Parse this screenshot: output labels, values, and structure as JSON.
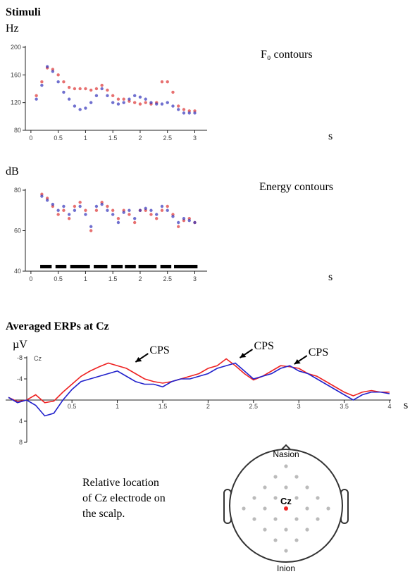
{
  "chart_data": [
    {
      "type": "scatter",
      "title": "Stimuli",
      "ylabel": "Hz",
      "xlabel": "s",
      "annotation": "F₀ contours",
      "x": [
        0.1,
        0.2,
        0.3,
        0.4,
        0.5,
        0.6,
        0.7,
        0.8,
        0.9,
        1.0,
        1.1,
        1.2,
        1.3,
        1.4,
        1.5,
        1.6,
        1.7,
        1.8,
        1.9,
        2.0,
        2.1,
        2.2,
        2.3,
        2.4,
        2.5,
        2.6,
        2.7,
        2.8,
        2.9,
        3.0
      ],
      "series": [
        {
          "color": "#d33",
          "values": [
            130,
            150,
            170,
            168,
            160,
            150,
            142,
            140,
            140,
            140,
            138,
            140,
            145,
            138,
            130,
            125,
            125,
            122,
            120,
            118,
            120,
            118,
            120,
            150,
            150,
            135,
            115,
            110,
            108,
            108
          ]
        },
        {
          "color": "#33b",
          "values": [
            125,
            145,
            172,
            165,
            150,
            135,
            125,
            115,
            110,
            112,
            120,
            130,
            140,
            130,
            120,
            118,
            120,
            125,
            130,
            128,
            125,
            120,
            118,
            118,
            120,
            115,
            110,
            105,
            105,
            105
          ]
        }
      ],
      "xlim": [
        -0.05,
        3.2
      ],
      "xticks": [
        0,
        0.5,
        1,
        1.5,
        2,
        2.5,
        3
      ],
      "ylim": [
        80,
        200
      ],
      "yticks": [
        80,
        120,
        160,
        200
      ]
    },
    {
      "type": "scatter",
      "ylabel": "dB",
      "xlabel": "s",
      "annotation": "Energy contours",
      "x": [
        0.2,
        0.3,
        0.4,
        0.5,
        0.6,
        0.7,
        0.8,
        0.9,
        1.0,
        1.1,
        1.2,
        1.3,
        1.4,
        1.5,
        1.6,
        1.7,
        1.8,
        1.9,
        2.0,
        2.1,
        2.2,
        2.3,
        2.4,
        2.5,
        2.6,
        2.7,
        2.8,
        2.9,
        3.0
      ],
      "series": [
        {
          "color": "#d33",
          "values": [
            78,
            76,
            72,
            68,
            70,
            66,
            72,
            74,
            70,
            60,
            70,
            74,
            72,
            70,
            66,
            70,
            68,
            64,
            70,
            70,
            68,
            66,
            70,
            72,
            68,
            62,
            65,
            66,
            64
          ]
        },
        {
          "color": "#33b",
          "values": [
            77,
            75,
            73,
            70,
            72,
            68,
            70,
            72,
            68,
            62,
            72,
            73,
            70,
            68,
            64,
            69,
            70,
            66,
            70,
            71,
            70,
            68,
            72,
            70,
            67,
            64,
            66,
            65,
            64
          ]
        }
      ],
      "segments": [
        [
          0.17,
          0.38
        ],
        [
          0.45,
          0.65
        ],
        [
          0.72,
          1.08
        ],
        [
          1.15,
          1.4
        ],
        [
          1.47,
          1.68
        ],
        [
          1.72,
          1.92
        ],
        [
          1.97,
          2.3
        ],
        [
          2.37,
          2.57
        ],
        [
          2.62,
          3.05
        ]
      ],
      "xlim": [
        -0.05,
        3.2
      ],
      "xticks": [
        0,
        0.5,
        1,
        1.5,
        2,
        2.5,
        3
      ],
      "ylim": [
        40,
        80
      ],
      "yticks": [
        40,
        60,
        80
      ]
    },
    {
      "type": "line",
      "title": "Averaged ERPs at Cz",
      "ylabel": "µV",
      "xlabel": "s",
      "channel_label": "Cz",
      "x": [
        -0.2,
        -0.1,
        0,
        0.1,
        0.2,
        0.3,
        0.4,
        0.5,
        0.6,
        0.7,
        0.8,
        0.9,
        1.0,
        1.1,
        1.2,
        1.3,
        1.4,
        1.5,
        1.6,
        1.7,
        1.8,
        1.9,
        2.0,
        2.1,
        2.2,
        2.3,
        2.4,
        2.5,
        2.6,
        2.7,
        2.8,
        2.9,
        3.0,
        3.1,
        3.2,
        3.3,
        3.4,
        3.5,
        3.6,
        3.7,
        3.8,
        3.9,
        4.0
      ],
      "series": [
        {
          "color": "#e22",
          "values": [
            -0.5,
            0.3,
            0,
            -1,
            0.5,
            0.2,
            -1.5,
            -3,
            -4.5,
            -5.5,
            -6.3,
            -7,
            -6.5,
            -6,
            -5,
            -4,
            -3.5,
            -3.2,
            -3.5,
            -4,
            -4.5,
            -5,
            -6,
            -6.5,
            -7.8,
            -6.5,
            -5,
            -3.8,
            -4.5,
            -5.5,
            -6.5,
            -6.3,
            -6,
            -5,
            -4.5,
            -3.5,
            -2.5,
            -1.5,
            -0.8,
            -1.5,
            -1.8,
            -1.5,
            -1.5
          ]
        },
        {
          "color": "#22c",
          "values": [
            -0.5,
            0.5,
            0,
            1,
            3,
            2.5,
            0,
            -2,
            -3.5,
            -4,
            -4.5,
            -5,
            -5.5,
            -4.5,
            -3.5,
            -3,
            -3,
            -2.5,
            -3.5,
            -4,
            -4,
            -4.5,
            -5,
            -6,
            -6.5,
            -7,
            -5.5,
            -4,
            -4.5,
            -5,
            -6,
            -6.5,
            -5.5,
            -5,
            -4,
            -3,
            -2,
            -1,
            0,
            -1,
            -1.5,
            -1.5,
            -1.2
          ]
        }
      ],
      "annotations": [
        {
          "text": "CPS",
          "x": 1.2,
          "y": -7.2
        },
        {
          "text": "CPS",
          "x": 2.35,
          "y": -8
        },
        {
          "text": "CPS",
          "x": 2.95,
          "y": -6.8
        }
      ],
      "xlim": [
        -0.2,
        4
      ],
      "xticks": [
        0.5,
        1,
        1.5,
        2,
        2.5,
        3,
        3.5,
        4
      ],
      "ylim": [
        -8,
        8
      ],
      "yticks": [
        -8,
        -4,
        4,
        8
      ],
      "y_inverted": true
    }
  ],
  "diagram": {
    "note": [
      "Relative location",
      "of Cz electrode on",
      "the scalp."
    ],
    "top": "Nasion",
    "bottom": "Inion",
    "electrode": "Cz"
  }
}
